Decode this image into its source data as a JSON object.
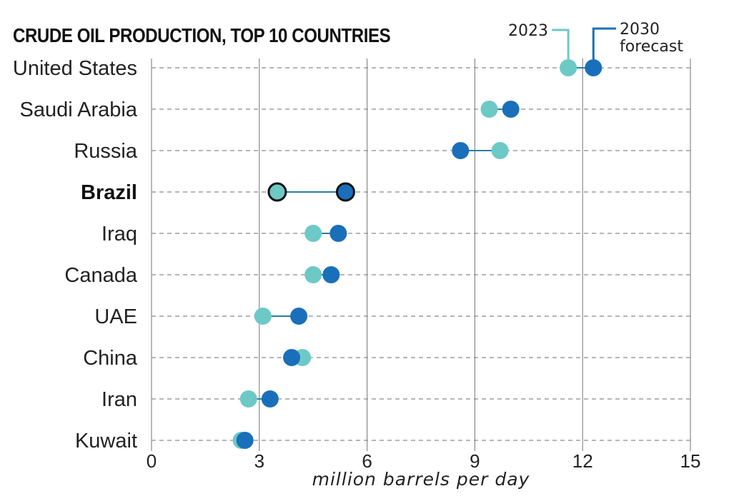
{
  "chart_data": {
    "type": "dumbbell",
    "title": "CRUDE OIL PRODUCTION, TOP 10 COUNTRIES",
    "xlabel": "million barrels per day",
    "xlim": [
      0,
      15
    ],
    "xticks": [
      0,
      3,
      6,
      9,
      12,
      15
    ],
    "grid": true,
    "highlight": "Brazil",
    "legend_placement": "top-right",
    "legend": [
      {
        "key": "y2023",
        "line1": "2023",
        "line2": ""
      },
      {
        "key": "y2030",
        "line1": "2030",
        "line2": "forecast"
      }
    ],
    "categories": [
      "United States",
      "Saudi Arabia",
      "Russia",
      "Brazil",
      "Iraq",
      "Canada",
      "UAE",
      "China",
      "Iran",
      "Kuwait"
    ],
    "series": [
      {
        "name": "2023",
        "key": "y2023",
        "color": "#6cc9c6",
        "values": [
          11.6,
          9.4,
          9.7,
          3.5,
          4.5,
          4.5,
          3.1,
          4.2,
          2.7,
          2.5
        ]
      },
      {
        "name": "2030 forecast",
        "key": "y2030",
        "color": "#1a6fba",
        "values": [
          12.3,
          10.0,
          8.6,
          5.4,
          5.2,
          5.0,
          4.1,
          3.9,
          3.3,
          2.6
        ]
      }
    ]
  }
}
